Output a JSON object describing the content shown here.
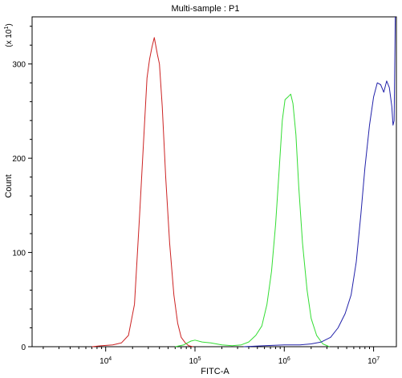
{
  "chart_data": {
    "type": "line",
    "title": "Multi-sample : P1",
    "xlabel": "FITC-A",
    "ylabel": "Count",
    "y_multiplier": "(x 10",
    "y_multiplier_exp": "1",
    "y_multiplier_close": ")",
    "xscale": "log",
    "xlim": [
      1500,
      18000000
    ],
    "ylim": [
      0,
      350
    ],
    "y_ticks": [
      {
        "value": 0,
        "label": "0"
      },
      {
        "value": 100,
        "label": "100"
      },
      {
        "value": 200,
        "label": "200"
      },
      {
        "value": 300,
        "label": "300"
      }
    ],
    "x_ticks": [
      {
        "value": 10000,
        "base": "10",
        "exp": "4"
      },
      {
        "value": 100000,
        "base": "10",
        "exp": "5"
      },
      {
        "value": 1000000,
        "base": "10",
        "exp": "6"
      },
      {
        "value": 10000000,
        "base": "10",
        "exp": "7"
      }
    ],
    "grid": false,
    "series": [
      {
        "color": "#cc2222",
        "x": [
          7000,
          9000,
          12000,
          15000,
          18000,
          21000,
          24000,
          27000,
          29000,
          31000,
          33000,
          35000,
          36000,
          38000,
          40000,
          43000,
          47000,
          52000,
          58000,
          64000,
          70000,
          78000,
          85000,
          95000
        ],
        "y": [
          0,
          1,
          2,
          4,
          12,
          45,
          140,
          230,
          285,
          305,
          318,
          328,
          322,
          310,
          300,
          255,
          180,
          110,
          55,
          25,
          10,
          4,
          1,
          0
        ]
      },
      {
        "color": "#33dd33",
        "x": [
          60000,
          75000,
          90000,
          100000,
          120000,
          150000,
          200000,
          260000,
          330000,
          400000,
          480000,
          560000,
          640000,
          720000,
          800000,
          880000,
          950000,
          1020000,
          1100000,
          1180000,
          1250000,
          1350000,
          1450000,
          1600000,
          1800000,
          2000000,
          2300000,
          2700000,
          3200000
        ],
        "y": [
          0,
          2,
          6,
          7,
          5,
          4,
          2,
          1,
          2,
          5,
          12,
          22,
          45,
          80,
          130,
          190,
          240,
          262,
          265,
          268,
          258,
          225,
          170,
          110,
          60,
          30,
          12,
          3,
          0
        ]
      },
      {
        "color": "#2222aa",
        "x": [
          350000,
          600000,
          1000000,
          1500000,
          2000000,
          2600000,
          3300000,
          4000000,
          4800000,
          5600000,
          6400000,
          7200000,
          8000000,
          9000000,
          10000000,
          11000000,
          12000000,
          13000000,
          14000000,
          15000000,
          16000000,
          16500000,
          17000000,
          17500000
        ],
        "y": [
          0,
          1,
          2,
          2,
          3,
          5,
          10,
          20,
          35,
          55,
          90,
          140,
          190,
          235,
          265,
          280,
          278,
          270,
          282,
          275,
          255,
          235,
          240,
          350
        ]
      }
    ]
  }
}
